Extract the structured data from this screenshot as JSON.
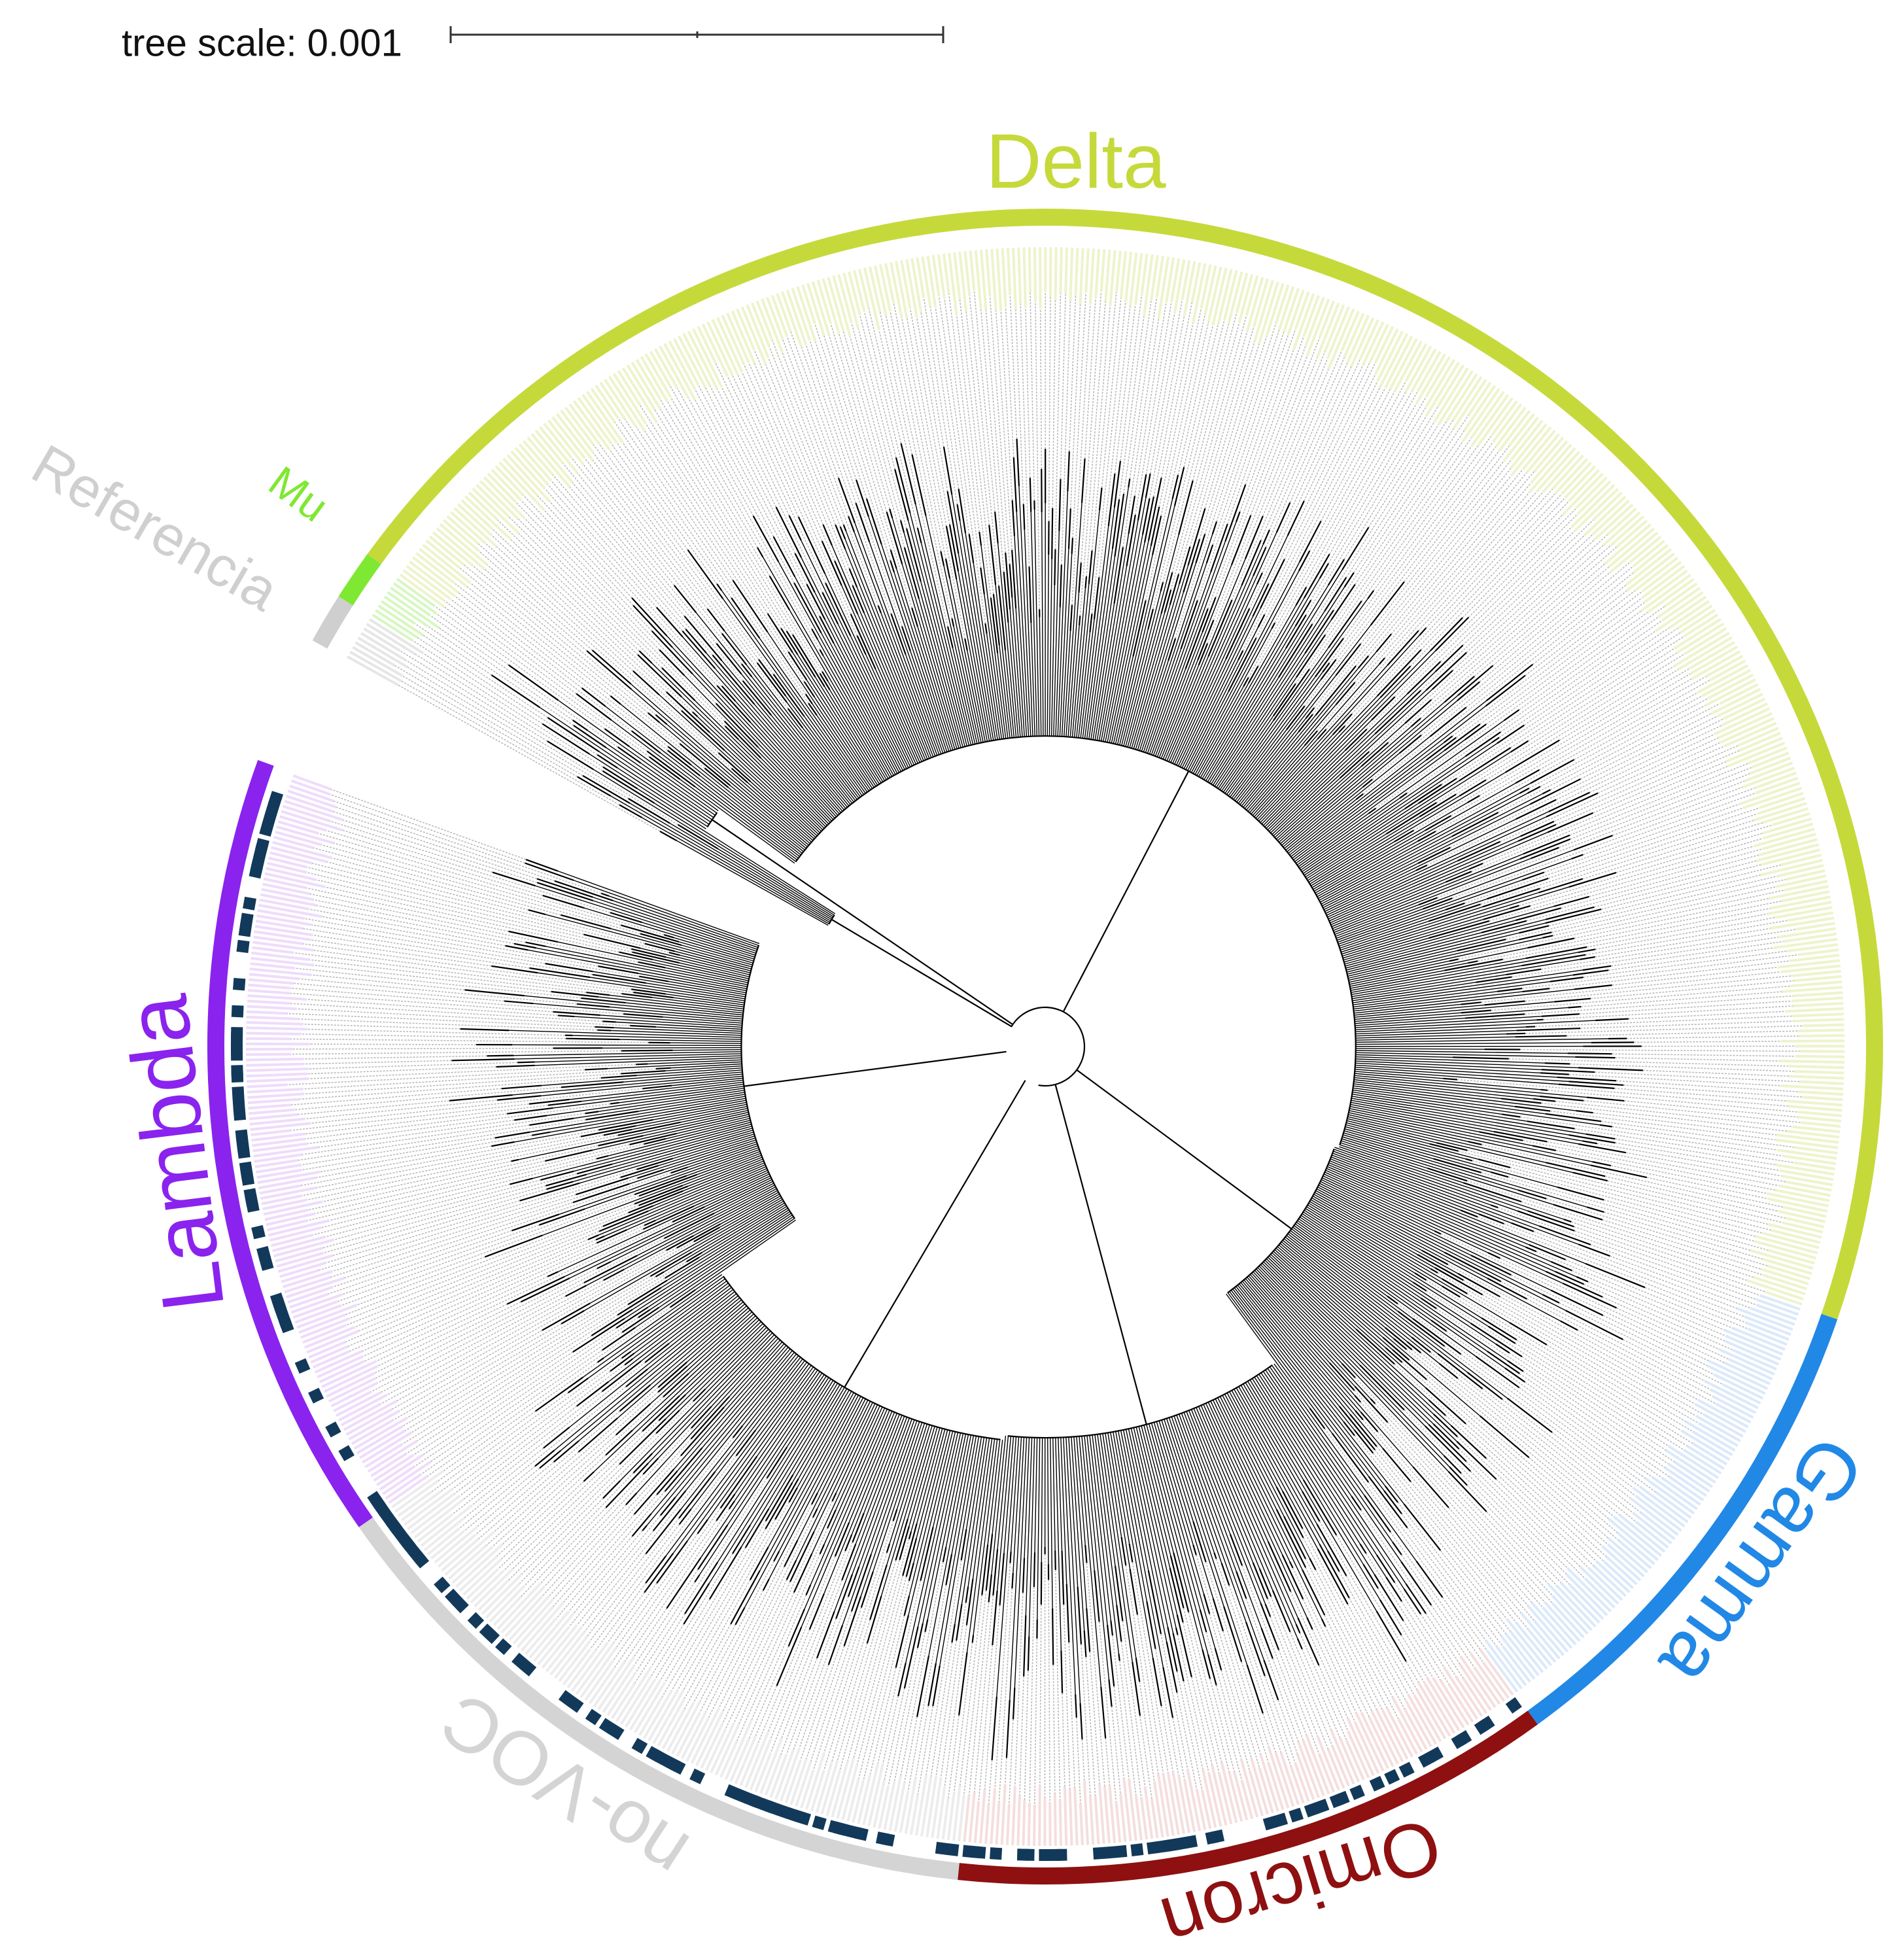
{
  "scale_bar": {
    "label": "tree scale: 0.001"
  },
  "clades": [
    {
      "label": "Referencia",
      "color": "#cfcfcf"
    },
    {
      "label": "Mu",
      "color": "#7fe832"
    },
    {
      "label": "Delta",
      "color": "#c6d93b"
    },
    {
      "label": "Gamma",
      "color": "#2188e6"
    },
    {
      "label": "Omicron",
      "color": "#8e1010"
    },
    {
      "label": "no-VOC",
      "color": "#d4d4d4"
    },
    {
      "label": "Lambda",
      "color": "#8a23ee"
    }
  ]
}
